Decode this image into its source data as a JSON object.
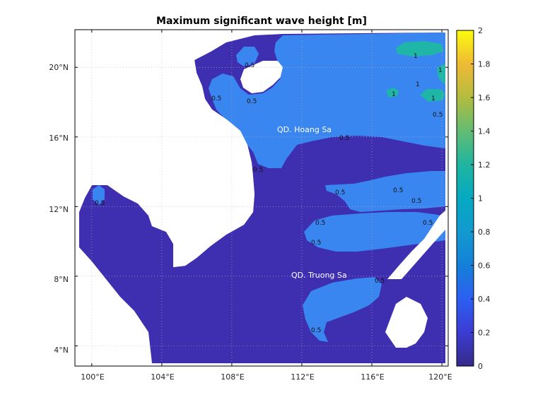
{
  "title": "Maximum significant wave height [m]",
  "map": {
    "lon_range": [
      99.2,
      120.2
    ],
    "lat_range": [
      3.0,
      22.0
    ],
    "lon_ticks": [
      "100°E",
      "104°E",
      "108°E",
      "112°E",
      "116°E",
      "120°E"
    ],
    "lat_ticks": [
      "4°N",
      "8°N",
      "12°N",
      "16°N",
      "20°N"
    ],
    "region_labels": [
      "QD. Hoang Sa",
      "QD. Truong Sa"
    ],
    "contour_labels": [
      "0.5",
      "0.5",
      "0.5",
      "0.5",
      "0.5",
      "0.5",
      "0.5",
      "0.5",
      "0.5",
      "0.5",
      "0.5",
      "0.5",
      "0.5",
      "0.5",
      "0.5",
      "1",
      "1",
      "1",
      "1",
      "1"
    ],
    "land_color": "#ffffff",
    "grid": true,
    "grid_style": "dotted"
  },
  "colorbar": {
    "ticks": [
      "0",
      "0.2",
      "0.4",
      "0.6",
      "0.8",
      "1",
      "1.2",
      "1.4",
      "1.6",
      "1.8",
      "2"
    ],
    "range": [
      0,
      2
    ],
    "colormap": "parula",
    "levels": [
      {
        "name": "0-0.5",
        "color": "#3e2fb1"
      },
      {
        "name": "0.5-1",
        "color": "#3a86f0"
      },
      {
        "name": "1-1.5",
        "color": "#1fb6a7"
      }
    ]
  }
}
